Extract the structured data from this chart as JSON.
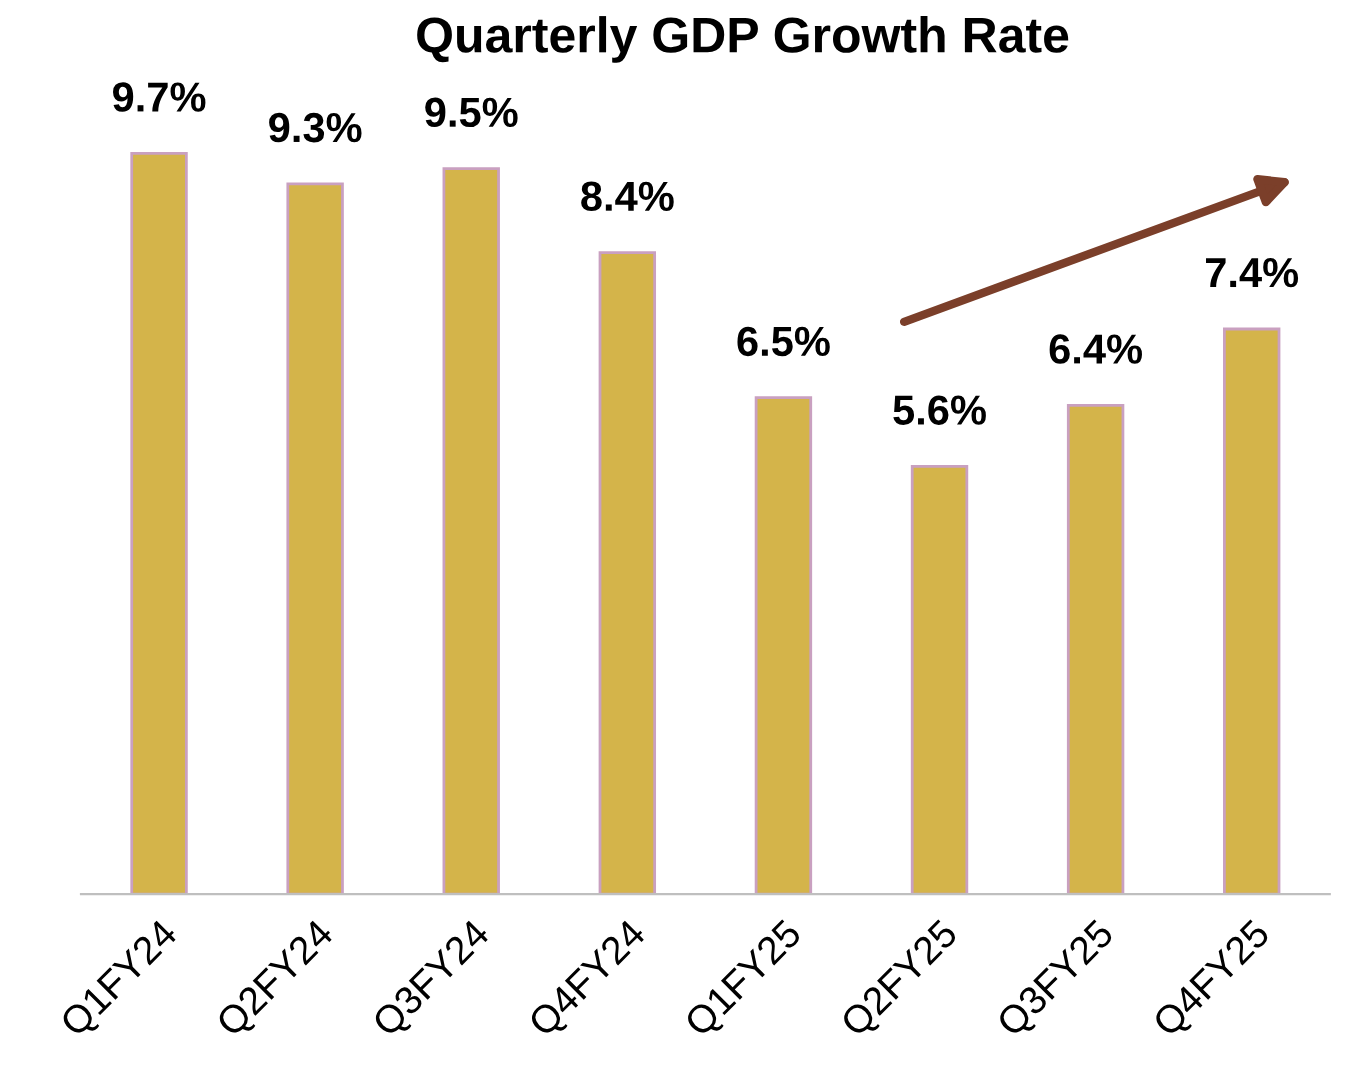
{
  "chart_data": {
    "type": "bar",
    "title": "Quarterly GDP Growth Rate",
    "categories": [
      "Q1FY24",
      "Q2FY24",
      "Q3FY24",
      "Q4FY24",
      "Q1FY25",
      "Q2FY25",
      "Q3FY25",
      "Q4FY25"
    ],
    "values": [
      9.7,
      9.3,
      9.5,
      8.4,
      6.5,
      5.6,
      6.4,
      7.4
    ],
    "value_labels": [
      "9.7%",
      "9.3%",
      "9.5%",
      "8.4%",
      "6.5%",
      "5.6%",
      "6.4%",
      "7.4%"
    ],
    "color": "#d4b44a",
    "grid": false,
    "legend": false
  }
}
